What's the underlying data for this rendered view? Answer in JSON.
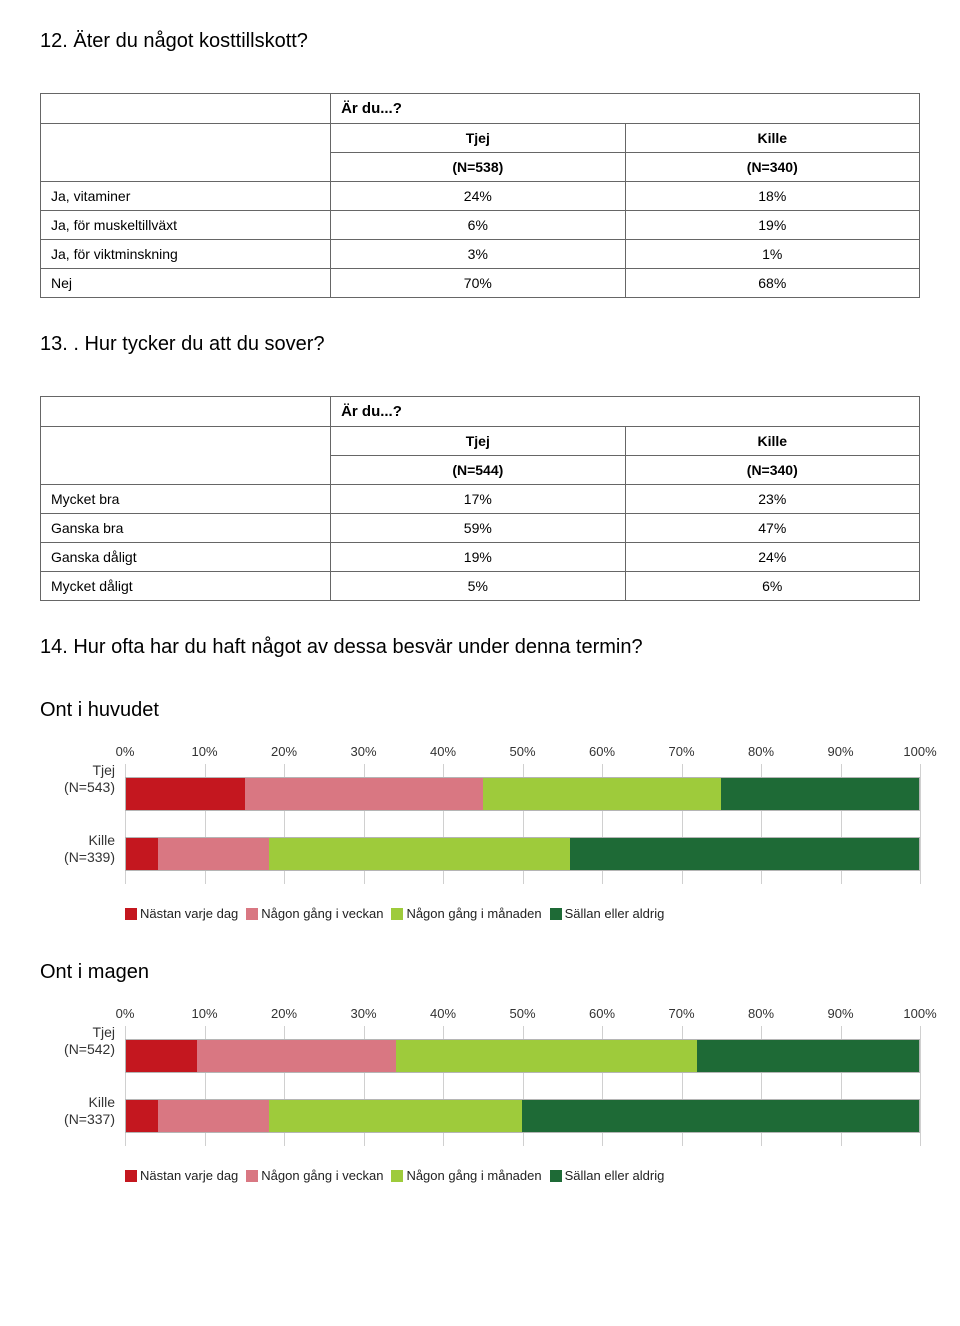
{
  "colors": {
    "c1": "#c4171f",
    "c2": "#d97782",
    "c3": "#9ecb3b",
    "c4": "#1e6a36",
    "grid": "#d0d0d0",
    "bar_border": "#b5b5b5"
  },
  "q12": {
    "title": "12. Äter du något kosttillskott?",
    "header": "Är du...?",
    "cols": [
      {
        "label": "Tjej",
        "n": "(N=538)"
      },
      {
        "label": "Kille",
        "n": "(N=340)"
      }
    ],
    "rows": [
      {
        "label": "Ja, vitaminer",
        "vals": [
          "24%",
          "18%"
        ]
      },
      {
        "label": "Ja, för muskeltillväxt",
        "vals": [
          "6%",
          "19%"
        ]
      },
      {
        "label": "Ja, för viktminskning",
        "vals": [
          "3%",
          "1%"
        ]
      },
      {
        "label": "Nej",
        "vals": [
          "70%",
          "68%"
        ]
      }
    ]
  },
  "q13": {
    "title": "13. . Hur tycker du att du sover?",
    "header": "Är du...?",
    "cols": [
      {
        "label": "Tjej",
        "n": "(N=544)"
      },
      {
        "label": "Kille",
        "n": "(N=340)"
      }
    ],
    "rows": [
      {
        "label": "Mycket bra",
        "vals": [
          "17%",
          "23%"
        ]
      },
      {
        "label": "Ganska bra",
        "vals": [
          "59%",
          "47%"
        ]
      },
      {
        "label": "Ganska dåligt",
        "vals": [
          "19%",
          "24%"
        ]
      },
      {
        "label": "Mycket dåligt",
        "vals": [
          "5%",
          "6%"
        ]
      }
    ]
  },
  "q14": {
    "title": "14. Hur ofta har du haft något av dessa besvär under denna termin?",
    "axis_ticks": [
      "0%",
      "10%",
      "20%",
      "30%",
      "40%",
      "50%",
      "60%",
      "70%",
      "80%",
      "90%",
      "100%"
    ],
    "legend": [
      {
        "label": "Nästan varje dag",
        "color_key": "c1"
      },
      {
        "label": "Någon gång i veckan",
        "color_key": "c2"
      },
      {
        "label": "Någon gång i månaden",
        "color_key": "c3"
      },
      {
        "label": "Sällan eller aldrig",
        "color_key": "c4"
      }
    ],
    "charts": [
      {
        "subtitle": "Ont i huvudet",
        "rows": [
          {
            "label1": "Tjej",
            "label2": "(N=543)",
            "segments": [
              15,
              30,
              30,
              25
            ]
          },
          {
            "label1": "Kille",
            "label2": "(N=339)",
            "segments": [
              4,
              14,
              38,
              44
            ]
          }
        ]
      },
      {
        "subtitle": "Ont i magen",
        "rows": [
          {
            "label1": "Tjej",
            "label2": "(N=542)",
            "segments": [
              9,
              25,
              38,
              28
            ]
          },
          {
            "label1": "Kille",
            "label2": "(N=337)",
            "segments": [
              4,
              14,
              32,
              50
            ]
          }
        ]
      }
    ]
  }
}
